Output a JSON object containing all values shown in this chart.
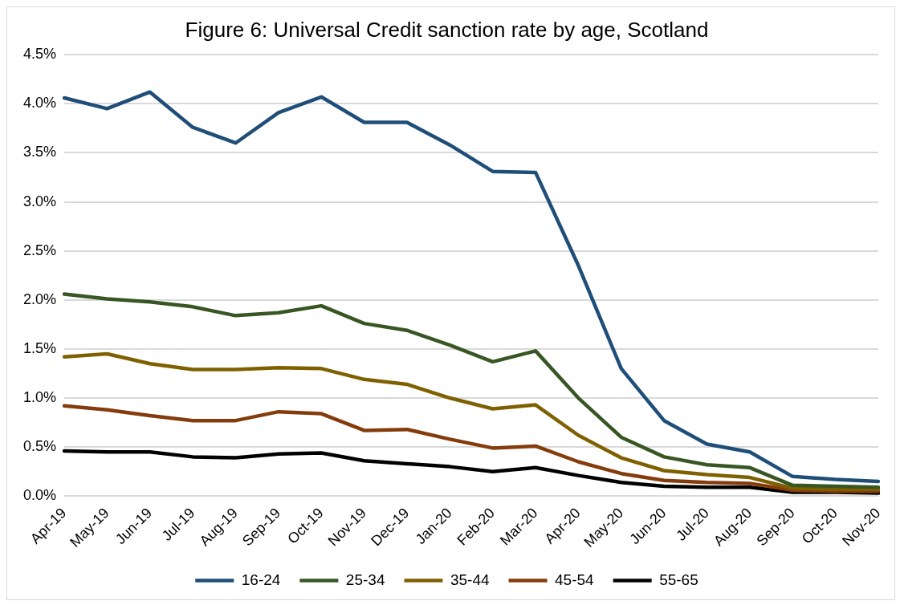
{
  "chart_data": {
    "type": "line",
    "title": "Figure 6: Universal Credit sanction rate by age, Scotland",
    "categories": [
      "Apr-19",
      "May-19",
      "Jun-19",
      "Jul-19",
      "Aug-19",
      "Sep-19",
      "Oct-19",
      "Nov-19",
      "Dec-19",
      "Jan-20",
      "Feb-20",
      "Mar-20",
      "Apr-20",
      "May-20",
      "Jun-20",
      "Jul-20",
      "Aug-20",
      "Sep-20",
      "Oct-20",
      "Nov-20"
    ],
    "series": [
      {
        "name": "16-24",
        "color": "#1f4e79",
        "values": [
          4.06,
          3.95,
          4.12,
          3.76,
          3.6,
          3.91,
          4.07,
          3.81,
          3.81,
          3.58,
          3.31,
          3.3,
          2.35,
          1.3,
          0.77,
          0.53,
          0.45,
          0.2,
          0.17,
          0.15
        ]
      },
      {
        "name": "25-34",
        "color": "#375623",
        "values": [
          2.06,
          2.01,
          1.98,
          1.93,
          1.84,
          1.87,
          1.94,
          1.76,
          1.69,
          1.54,
          1.37,
          1.48,
          1.0,
          0.6,
          0.4,
          0.32,
          0.29,
          0.11,
          0.1,
          0.09
        ]
      },
      {
        "name": "35-44",
        "color": "#7f6000",
        "values": [
          1.42,
          1.45,
          1.35,
          1.29,
          1.29,
          1.31,
          1.3,
          1.19,
          1.14,
          1.0,
          0.89,
          0.93,
          0.62,
          0.39,
          0.26,
          0.22,
          0.19,
          0.08,
          0.07,
          0.07
        ]
      },
      {
        "name": "45-54",
        "color": "#843c0c",
        "values": [
          0.92,
          0.88,
          0.82,
          0.77,
          0.77,
          0.86,
          0.84,
          0.67,
          0.68,
          0.58,
          0.49,
          0.51,
          0.35,
          0.23,
          0.16,
          0.14,
          0.13,
          0.06,
          0.05,
          0.05
        ]
      },
      {
        "name": "55-65",
        "color": "#000000",
        "values": [
          0.46,
          0.45,
          0.45,
          0.4,
          0.39,
          0.43,
          0.44,
          0.36,
          0.33,
          0.3,
          0.25,
          0.29,
          0.21,
          0.14,
          0.1,
          0.09,
          0.09,
          0.04,
          0.04,
          0.03
        ]
      }
    ],
    "ylim": [
      0,
      4.5
    ],
    "yticks": [
      {
        "value": 0,
        "label": "0.0%"
      },
      {
        "value": 0.5,
        "label": "0.5%"
      },
      {
        "value": 1,
        "label": "1.0%"
      },
      {
        "value": 1.5,
        "label": "1.5%"
      },
      {
        "value": 2,
        "label": "2.0%"
      },
      {
        "value": 2.5,
        "label": "2.5%"
      },
      {
        "value": 3,
        "label": "3.0%"
      },
      {
        "value": 3.5,
        "label": "3.5%"
      },
      {
        "value": 4,
        "label": "4.0%"
      },
      {
        "value": 4.5,
        "label": "4.5%"
      }
    ],
    "grid": "y",
    "legend": "bottom",
    "marker": "none",
    "line_style": "solid"
  }
}
